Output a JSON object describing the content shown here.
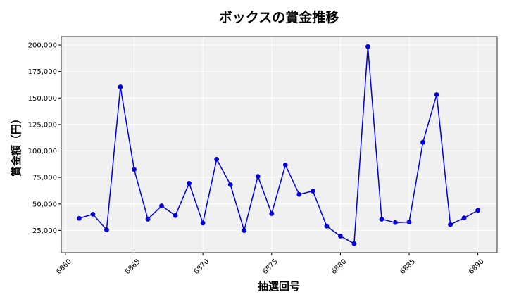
{
  "chart_data": {
    "type": "line",
    "title": "ボックスの賞金推移",
    "xlabel": "抽選回号",
    "ylabel": "賞金額（円）",
    "x_ticks": [
      6860,
      6865,
      6870,
      6875,
      6880,
      6885,
      6890
    ],
    "y_ticks": [
      25000,
      50000,
      75000,
      100000,
      125000,
      150000,
      175000,
      200000
    ],
    "y_tick_labels": [
      "25,000",
      "50,000",
      "75,000",
      "100,000",
      "125,000",
      "150,000",
      "175,000",
      "200,000"
    ],
    "xlim": [
      6859.7,
      6891.4
    ],
    "ylim": [
      4000,
      208000
    ],
    "grid": true,
    "line_color": "#0000dd",
    "marker_color": "#0000dd",
    "plot_background": "#f0f0f0",
    "x": [
      6861,
      6862,
      6863,
      6864,
      6865,
      6866,
      6867,
      6868,
      6869,
      6870,
      6871,
      6872,
      6873,
      6874,
      6875,
      6876,
      6877,
      6878,
      6879,
      6880,
      6881,
      6882,
      6883,
      6884,
      6885,
      6886,
      6887,
      6888,
      6889,
      6890
    ],
    "values": [
      36400,
      40300,
      25500,
      160500,
      82600,
      35600,
      48200,
      39100,
      69500,
      31900,
      92100,
      68200,
      24900,
      76000,
      40900,
      86800,
      59000,
      62200,
      29000,
      19600,
      12500,
      198500,
      35600,
      32400,
      32900,
      108200,
      153200,
      30500,
      36800,
      43900
    ]
  }
}
